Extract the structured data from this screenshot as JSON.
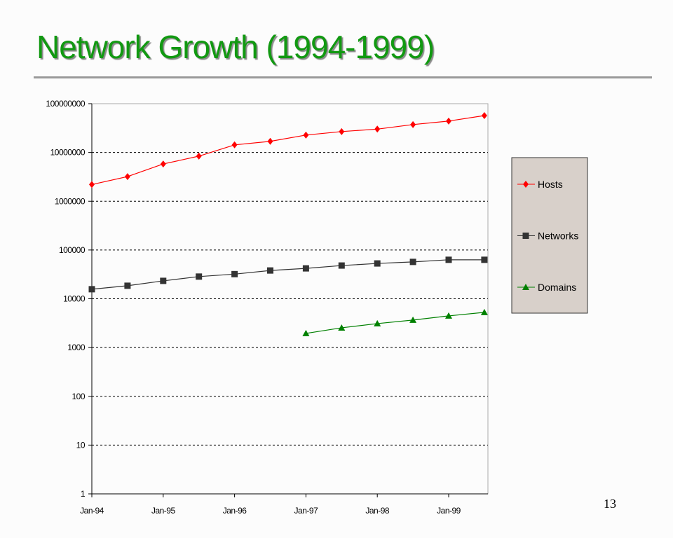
{
  "slide": {
    "title": "Network Growth (1994-1999)",
    "page_number": "13"
  },
  "chart_data": {
    "type": "line",
    "title": "",
    "xlabel": "",
    "ylabel": "",
    "yscale": "log",
    "ylim": [
      1,
      100000000
    ],
    "grid": true,
    "legend_position": "right",
    "x": [
      "Jan-94",
      "Jul-94",
      "Jan-95",
      "Jul-95",
      "Jan-96",
      "Jul-96",
      "Jan-97",
      "Jul-97",
      "Jan-98",
      "Jul-98",
      "Jan-99",
      "Jul-99"
    ],
    "x_tick_labels": [
      "Jan-94",
      "Jan-95",
      "Jan-96",
      "Jan-97",
      "Jan-98",
      "Jan-99"
    ],
    "y_tick_labels": [
      "1",
      "10",
      "100",
      "1000",
      "10000",
      "100000",
      "1000000",
      "10000000",
      "100000000"
    ],
    "series": [
      {
        "name": "Hosts",
        "color": "#ff0000",
        "marker": "diamond",
        "values": [
          2200000,
          3200000,
          5800000,
          8400000,
          14300000,
          16900000,
          22700000,
          26800000,
          30100000,
          37300000,
          44000000,
          57000000
        ]
      },
      {
        "name": "Networks",
        "color": "#333333",
        "marker": "square",
        "values": [
          15700,
          18500,
          23300,
          28500,
          32000,
          38000,
          42000,
          48000,
          53000,
          57000,
          63000,
          63000
        ]
      },
      {
        "name": "Domains",
        "color": "#008000",
        "marker": "triangle",
        "values": [
          null,
          null,
          null,
          null,
          null,
          null,
          1950,
          2540,
          3100,
          3660,
          4460,
          5270
        ]
      }
    ]
  }
}
